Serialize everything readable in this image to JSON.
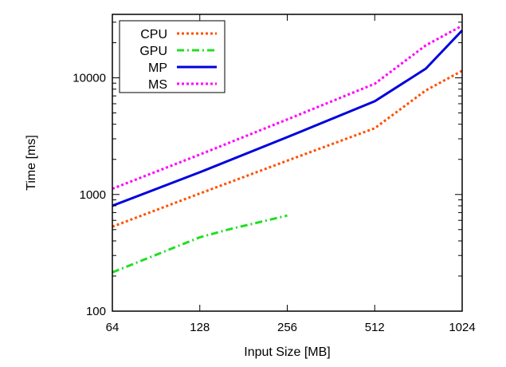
{
  "chart_data": {
    "type": "line",
    "title": "",
    "xlabel": "Input Size [MB]",
    "ylabel": "Time [ms]",
    "x_scale": "log2",
    "y_scale": "log10",
    "xlim": [
      64,
      1024
    ],
    "ylim": [
      100,
      35000
    ],
    "x_ticks": [
      64,
      128,
      256,
      512,
      1024
    ],
    "x_tick_labels": [
      "64",
      "128",
      "256",
      "512",
      "1024"
    ],
    "y_ticks": [
      100,
      1000,
      10000
    ],
    "y_tick_labels": [
      "100",
      "1000",
      "10000"
    ],
    "grid": false,
    "legend_position": "top-left",
    "series": [
      {
        "name": "CPU",
        "color": "#ff5000",
        "dash": "dotted",
        "x": [
          64,
          128,
          256,
          512,
          768,
          1024
        ],
        "y": [
          530,
          1020,
          1950,
          3700,
          7800,
          11500
        ]
      },
      {
        "name": "GPU",
        "color": "#22dd22",
        "dash": "dash-dot",
        "x": [
          64,
          128,
          160,
          256
        ],
        "y": [
          215,
          430,
          500,
          660
        ]
      },
      {
        "name": "MP",
        "color": "#0000dd",
        "dash": "solid",
        "x": [
          64,
          128,
          256,
          512,
          768,
          1024
        ],
        "y": [
          800,
          1550,
          3100,
          6300,
          12000,
          25500
        ]
      },
      {
        "name": "MS",
        "color": "#ff00ff",
        "dash": "dotted",
        "x": [
          64,
          128,
          256,
          512,
          768,
          1024
        ],
        "y": [
          1120,
          2200,
          4400,
          8900,
          19000,
          28000
        ]
      }
    ]
  }
}
